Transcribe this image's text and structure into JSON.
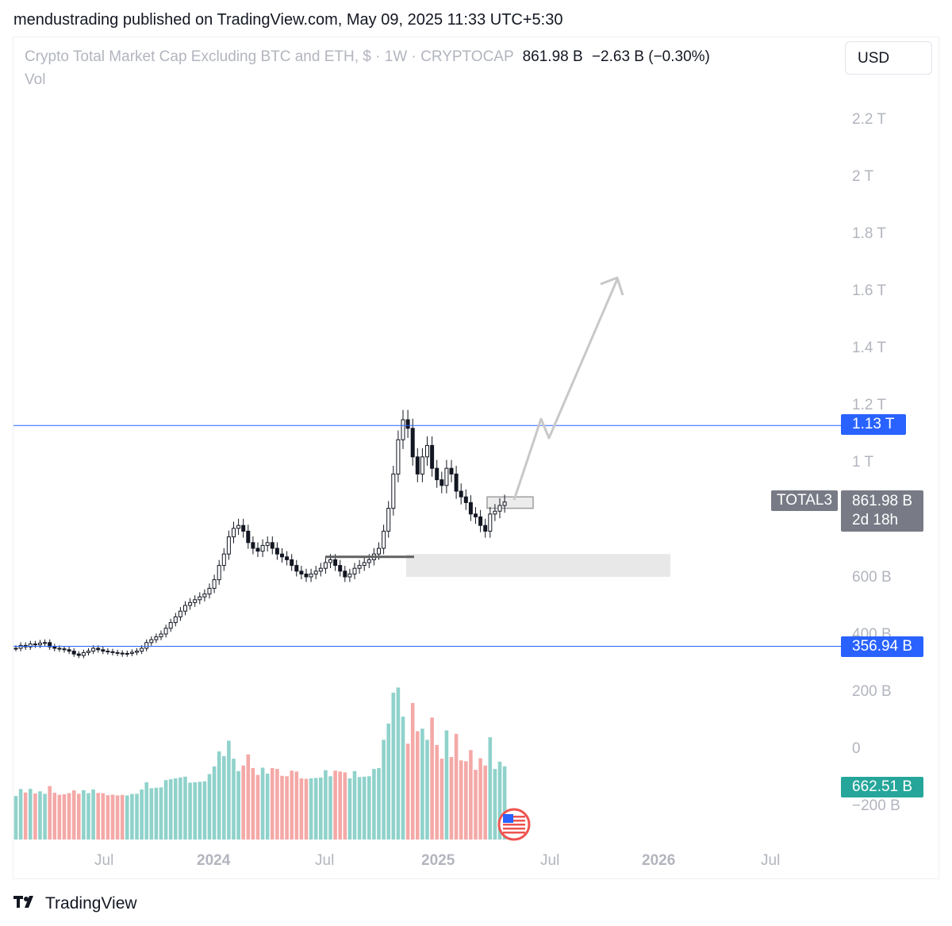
{
  "header": {
    "publisher_line": "mendustrading published on TradingView.com, May 09, 2025 11:33 UTC+5:30"
  },
  "legend": {
    "title": "Crypto Total Market Cap Excluding BTC and ETH, $ · 1W · CRYPTOCAP",
    "last_value": "861.98 B",
    "change": "−2.63 B (−0.30%)",
    "volume_label": "Vol"
  },
  "currency_button": "USD",
  "price_axis": {
    "ticks": [
      "2.2 T",
      "2 T",
      "1.8 T",
      "1.6 T",
      "1.4 T",
      "1.2 T",
      "1 T",
      "600 B",
      "400 B",
      "200 B",
      "0",
      "−200 B"
    ]
  },
  "tags": {
    "resistance": "1.13 T",
    "support": "356.94 B",
    "symbol": "TOTAL3",
    "last_price": "861.98 B",
    "countdown": "2d 18h",
    "volume": "662.51 B"
  },
  "time_axis": {
    "ticks": [
      {
        "label": "Jul",
        "bold": false
      },
      {
        "label": "2024",
        "bold": true
      },
      {
        "label": "Jul",
        "bold": false
      },
      {
        "label": "2025",
        "bold": true
      },
      {
        "label": "Jul",
        "bold": false
      },
      {
        "label": "2026",
        "bold": true
      },
      {
        "label": "Jul",
        "bold": false
      }
    ]
  },
  "footer": {
    "brand": "TradingView",
    "logo_icon": "tradingview-logo-icon"
  },
  "colors": {
    "up": "#26a69a",
    "down": "#ef5350",
    "vol_up": "#8fd2cb",
    "vol_down": "#f4a9a7",
    "level_line": "#2962ff",
    "projection": "#c8c8c8",
    "zone": "#e8e8e8"
  },
  "chart_data": {
    "type": "candlestick",
    "symbol": "TOTAL3",
    "interval": "1W",
    "unit": "USD",
    "resistance_level": 1130000000000,
    "support_level": 356940000000,
    "last_close": 861980000000,
    "annotations": [
      {
        "kind": "horizontal-line",
        "value": "1.13 T"
      },
      {
        "kind": "horizontal-line",
        "value": "356.94 B"
      },
      {
        "kind": "zone",
        "range": [
          600000000000,
          680000000000
        ]
      },
      {
        "kind": "zone",
        "range": [
          840000000000,
          880000000000
        ]
      },
      {
        "kind": "projection-arrow",
        "target_approx": 1650000000000
      }
    ],
    "closes_billions": [
      350,
      360,
      355,
      365,
      362,
      368,
      370,
      355,
      350,
      348,
      345,
      340,
      330,
      325,
      335,
      340,
      350,
      345,
      340,
      338,
      335,
      333,
      330,
      332,
      336,
      340,
      350,
      370,
      380,
      390,
      400,
      420,
      440,
      460,
      480,
      500,
      510,
      520,
      530,
      540,
      560,
      590,
      640,
      680,
      740,
      770,
      780,
      760,
      720,
      700,
      690,
      710,
      720,
      700,
      680,
      670,
      660,
      640,
      620,
      610,
      600,
      610,
      620,
      630,
      650,
      660,
      640,
      620,
      600,
      610,
      630,
      640,
      650,
      660,
      680,
      700,
      760,
      840,
      960,
      1080,
      1150,
      1120,
      1020,
      960,
      1020,
      1060,
      980,
      940,
      920,
      980,
      960,
      900,
      880,
      860,
      820,
      810,
      780,
      760,
      820,
      830,
      850,
      861.98
    ],
    "volume_scale_note": "weekly volume bars (billions) shown in lower pane"
  }
}
